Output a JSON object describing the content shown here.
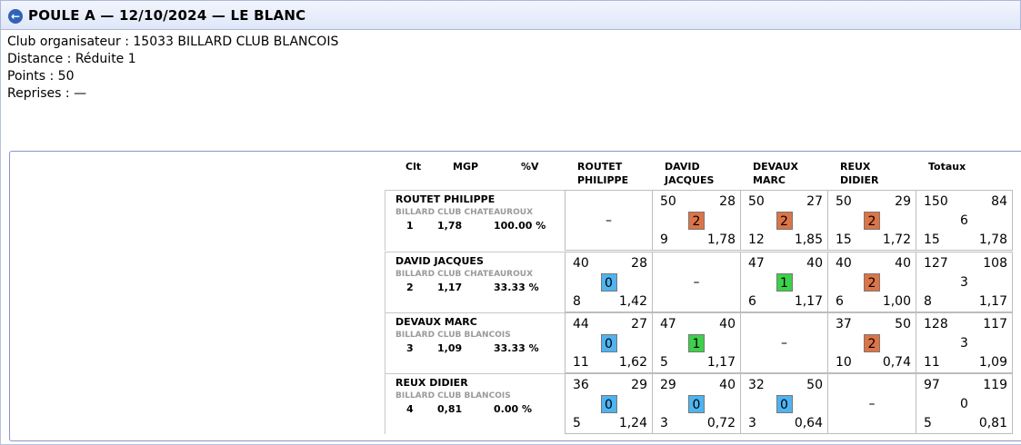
{
  "header": {
    "back_icon": "←",
    "title": "POULE A — 12/10/2024 — LE BLANC"
  },
  "info": [
    "Club organisateur : 15033 BILLARD CLUB BLANCOIS",
    "Distance : Réduite 1",
    "Points : 50",
    "Reprises : —"
  ],
  "columns": {
    "clt": "Clt",
    "mgp": "MGP",
    "pctv": "%V",
    "opponents": [
      [
        "ROUTET",
        "PHILIPPE"
      ],
      [
        "DAVID",
        "JACQUES"
      ],
      [
        "DEVAUX",
        "MARC"
      ],
      [
        "REUX",
        "DIDIER"
      ]
    ],
    "totals": "Totaux"
  },
  "empty_mark": "–",
  "colors": {
    "score_0": "#4fb3f0",
    "score_1": "#3dd04a",
    "score_2": "#dd7447"
  },
  "players": [
    {
      "name": "ROUTET PHILIPPE",
      "club": "BILLARD CLUB CHATEAUROUX",
      "rank": "1",
      "mgp": "1,78",
      "pctv": "100.00 %",
      "matches": [
        null,
        {
          "pts": "50",
          "opp": "28",
          "score": "2",
          "reprises": "9",
          "avg": "1,78"
        },
        {
          "pts": "50",
          "opp": "27",
          "score": "2",
          "reprises": "12",
          "avg": "1,85"
        },
        {
          "pts": "50",
          "opp": "29",
          "score": "2",
          "reprises": "15",
          "avg": "1,72"
        }
      ],
      "totals": {
        "pts": "150",
        "opp": "84",
        "score": "6",
        "reprises": "15",
        "avg": "1,78"
      }
    },
    {
      "name": "DAVID JACQUES",
      "club": "BILLARD CLUB CHATEAUROUX",
      "rank": "2",
      "mgp": "1,17",
      "pctv": "33.33 %",
      "matches": [
        {
          "pts": "40",
          "opp": "28",
          "score": "0",
          "reprises": "8",
          "avg": "1,42"
        },
        null,
        {
          "pts": "47",
          "opp": "40",
          "score": "1",
          "reprises": "6",
          "avg": "1,17"
        },
        {
          "pts": "40",
          "opp": "40",
          "score": "2",
          "reprises": "6",
          "avg": "1,00"
        }
      ],
      "totals": {
        "pts": "127",
        "opp": "108",
        "score": "3",
        "reprises": "8",
        "avg": "1,17"
      }
    },
    {
      "name": "DEVAUX MARC",
      "club": "BILLARD CLUB BLANCOIS",
      "rank": "3",
      "mgp": "1,09",
      "pctv": "33.33 %",
      "matches": [
        {
          "pts": "44",
          "opp": "27",
          "score": "0",
          "reprises": "11",
          "avg": "1,62"
        },
        {
          "pts": "47",
          "opp": "40",
          "score": "1",
          "reprises": "5",
          "avg": "1,17"
        },
        null,
        {
          "pts": "37",
          "opp": "50",
          "score": "2",
          "reprises": "10",
          "avg": "0,74"
        }
      ],
      "totals": {
        "pts": "128",
        "opp": "117",
        "score": "3",
        "reprises": "11",
        "avg": "1,09"
      }
    },
    {
      "name": "REUX DIDIER",
      "club": "BILLARD CLUB BLANCOIS",
      "rank": "4",
      "mgp": "0,81",
      "pctv": "0.00 %",
      "matches": [
        {
          "pts": "36",
          "opp": "29",
          "score": "0",
          "reprises": "5",
          "avg": "1,24"
        },
        {
          "pts": "29",
          "opp": "40",
          "score": "0",
          "reprises": "3",
          "avg": "0,72"
        },
        {
          "pts": "32",
          "opp": "50",
          "score": "0",
          "reprises": "3",
          "avg": "0,64"
        },
        null
      ],
      "totals": {
        "pts": "97",
        "opp": "119",
        "score": "0",
        "reprises": "5",
        "avg": "0,81"
      }
    }
  ]
}
